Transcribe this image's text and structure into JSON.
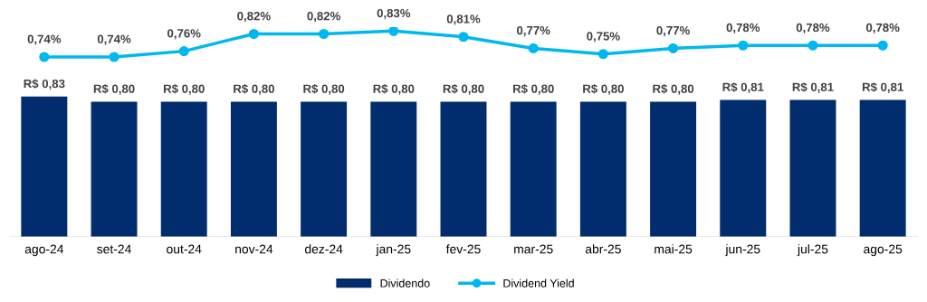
{
  "chart_data": [
    {
      "type": "line",
      "categories": [
        null,
        null,
        null,
        null,
        null,
        null,
        null,
        null,
        null,
        null,
        null,
        null,
        null
      ],
      "series": [
        {
          "name": "Dividend Yield",
          "color": "#00b8f0",
          "values": [
            0.74,
            0.74,
            0.76,
            0.82,
            0.82,
            0.83,
            0.81,
            0.77,
            0.75,
            0.77,
            0.78,
            0.78,
            0.78
          ],
          "value_labels": [
            "0,74%",
            "0,74%",
            "0,76%",
            "0,82%",
            "0,82%",
            "0,83%",
            "0,81%",
            "0,77%",
            "0,75%",
            "0,77%",
            "0,78%",
            "0,78%",
            "0,78%"
          ]
        }
      ],
      "marker": "circle",
      "line_style": "solid",
      "legend": "bottom",
      "tick_labels": false
    },
    {
      "type": "bar",
      "categories": [
        "ago-24",
        "set-24",
        "out-24",
        "nov-24",
        "dez-24",
        "jan-25",
        "fev-25",
        "mar-25",
        "abr-25",
        "mai-25",
        "jun-25",
        "jul-25",
        "ago-25"
      ],
      "series": [
        {
          "name": "Dividendo",
          "color": "#012d6e",
          "values": [
            0.83,
            0.8,
            0.8,
            0.8,
            0.8,
            0.8,
            0.8,
            0.8,
            0.8,
            0.8,
            0.81,
            0.81,
            0.81
          ],
          "value_labels": [
            "R$ 0,83",
            "R$ 0,80",
            "R$ 0,80",
            "R$ 0,80",
            "R$ 0,80",
            "R$ 0,80",
            "R$ 0,80",
            "R$ 0,80",
            "R$ 0,80",
            "R$ 0,80",
            "R$ 0,81",
            "R$ 0,81",
            "R$ 0,81"
          ]
        }
      ],
      "legend": "bottom",
      "tick_labels": "x"
    }
  ]
}
